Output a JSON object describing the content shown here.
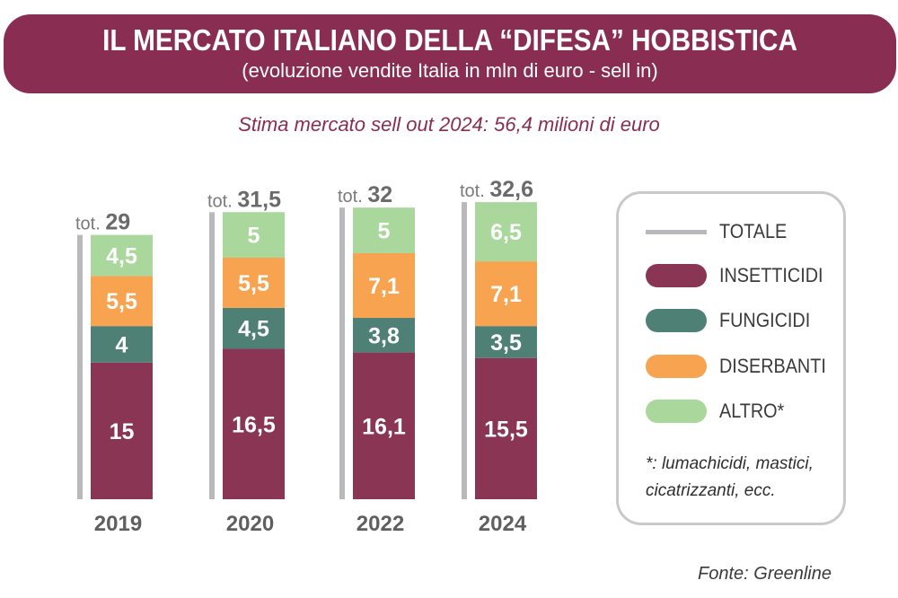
{
  "header": {
    "title": "IL MERCATO ITALIANO DELLA “DIFESA” HOBBISTICA",
    "subtitle": "(evoluzione vendite Italia in mln di euro - sell in)"
  },
  "estimate_note": "Stima mercato sell out 2024: 56,4 milioni di euro",
  "total_prefix": "tot.",
  "legend": {
    "items": [
      {
        "label": "TOTALE",
        "color": "#b9b9bc"
      },
      {
        "label": "INSETTICIDI",
        "color": "#8a3554"
      },
      {
        "label": "FUNGICIDI",
        "color": "#4f8076"
      },
      {
        "label": "DISERBANTI",
        "color": "#f7a34f"
      },
      {
        "label": "ALTRO*",
        "color": "#a9d79c"
      }
    ],
    "footnote_line1": "*: lumachicidi, mastici,",
    "footnote_line2": "cicatrizzanti, ecc."
  },
  "source": "Fonte: Greenline",
  "chart_data": {
    "type": "bar",
    "stacked": true,
    "categories": [
      "2019",
      "2020",
      "2022",
      "2024"
    ],
    "series": [
      {
        "name": "INSETTICIDI",
        "values": [
          15,
          16.5,
          16.1,
          15.5
        ],
        "labels": [
          "15",
          "16,5",
          "16,1",
          "15,5"
        ],
        "color": "#8a3554"
      },
      {
        "name": "FUNGICIDI",
        "values": [
          4,
          4.5,
          3.8,
          3.5
        ],
        "labels": [
          "4",
          "4,5",
          "3,8",
          "3,5"
        ],
        "color": "#4f8076"
      },
      {
        "name": "DISERBANTI",
        "values": [
          5.5,
          5.5,
          7.1,
          7.1
        ],
        "labels": [
          "5,5",
          "5,5",
          "7,1",
          "7,1"
        ],
        "color": "#f7a34f"
      },
      {
        "name": "ALTRO*",
        "values": [
          4.5,
          5,
          5,
          6.5
        ],
        "labels": [
          "4,5",
          "5",
          "5",
          "6,5"
        ],
        "color": "#a9d79c"
      }
    ],
    "totals": [
      29,
      31.5,
      32,
      32.6
    ],
    "total_labels": [
      "29",
      "31,5",
      "32",
      "32,6"
    ],
    "legend_position": "right",
    "grid": false
  }
}
